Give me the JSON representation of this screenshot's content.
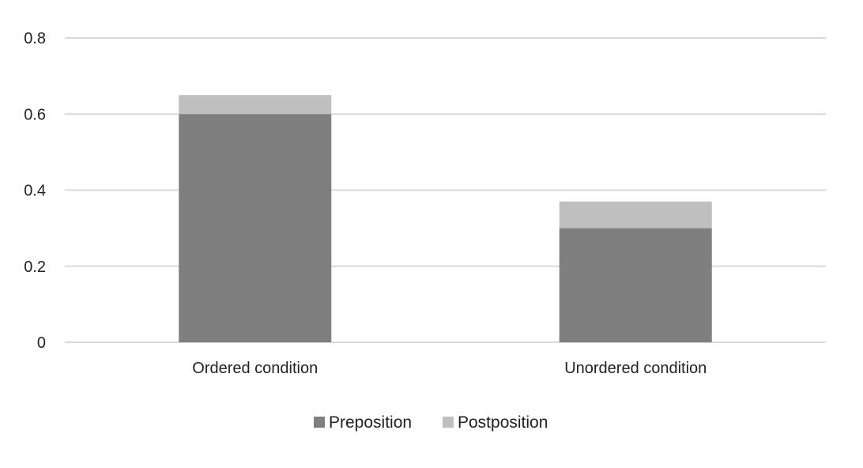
{
  "chart_data": {
    "type": "bar",
    "stacked": true,
    "title": "",
    "xlabel": "",
    "ylabel": "",
    "categories": [
      "Ordered condition",
      "Unordered condition"
    ],
    "series": [
      {
        "name": "Preposition",
        "values": [
          0.6,
          0.3
        ],
        "color": "#7f7f80"
      },
      {
        "name": "Postposition",
        "values": [
          0.05,
          0.07
        ],
        "color": "#bfbfbf"
      }
    ],
    "ylim": [
      0,
      0.8
    ],
    "yticks": [
      "0",
      "0.2",
      "0.4",
      "0.6",
      "0.8"
    ],
    "grid": true,
    "legend_position": "bottom"
  }
}
